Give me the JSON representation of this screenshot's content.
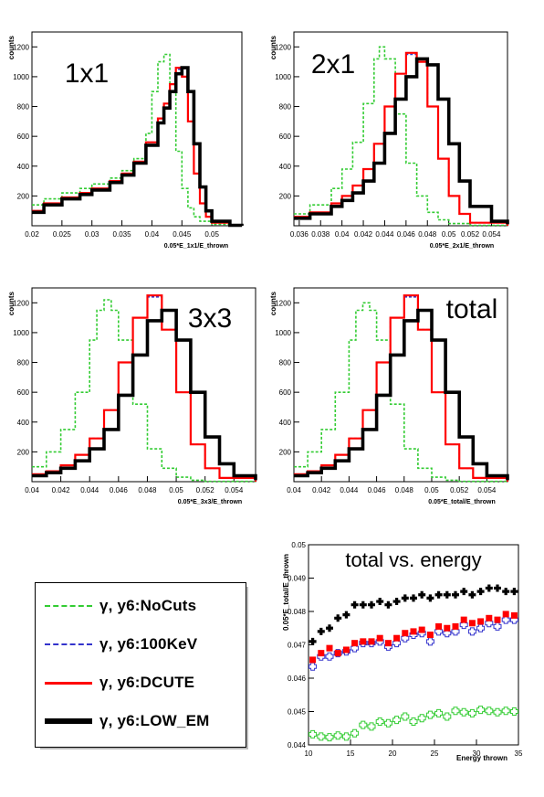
{
  "chart_data": [
    {
      "type": "line",
      "title": "1x1",
      "xlabel": "0.05*E_1x1/E_thrown",
      "ylabel": "counts",
      "xlim": [
        0.02,
        0.055
      ],
      "ylim": [
        0,
        1300
      ],
      "xticks": [
        "0.02",
        "0.025",
        "0.03",
        "0.035",
        "0.04",
        "0.045",
        "0.05"
      ],
      "yticks": [
        "200",
        "400",
        "600",
        "800",
        "1000",
        "1200"
      ],
      "series": [
        {
          "name": "γ, y6:NoCuts",
          "x": [
            0.02,
            0.022,
            0.025,
            0.028,
            0.03,
            0.033,
            0.035,
            0.037,
            0.039,
            0.04,
            0.041,
            0.042,
            0.043,
            0.044,
            0.045,
            0.046,
            0.047,
            0.048,
            0.05,
            0.053,
            0.055
          ],
          "values": [
            140,
            180,
            220,
            250,
            280,
            320,
            370,
            450,
            620,
            900,
            1100,
            1150,
            900,
            500,
            250,
            120,
            60,
            30,
            10,
            2,
            0
          ]
        },
        {
          "name": "γ, y6:100KeV",
          "x": [
            0.02,
            0.022,
            0.025,
            0.028,
            0.03,
            0.033,
            0.035,
            0.037,
            0.039,
            0.041,
            0.042,
            0.043,
            0.044,
            0.045,
            0.046,
            0.047,
            0.048,
            0.049,
            0.05,
            0.053,
            0.055
          ],
          "values": [
            100,
            150,
            190,
            220,
            250,
            300,
            350,
            430,
            560,
            720,
            820,
            950,
            1050,
            1000,
            700,
            350,
            150,
            60,
            20,
            2,
            0
          ]
        },
        {
          "name": "γ, y6:DCUTE",
          "x": [
            0.02,
            0.022,
            0.025,
            0.028,
            0.03,
            0.033,
            0.035,
            0.037,
            0.039,
            0.041,
            0.042,
            0.043,
            0.044,
            0.045,
            0.046,
            0.047,
            0.048,
            0.049,
            0.05,
            0.053,
            0.055
          ],
          "values": [
            100,
            150,
            190,
            220,
            250,
            300,
            350,
            430,
            560,
            720,
            820,
            950,
            1060,
            1000,
            700,
            350,
            150,
            60,
            20,
            2,
            0
          ]
        },
        {
          "name": "γ, y6:LOW_EM",
          "x": [
            0.02,
            0.022,
            0.025,
            0.028,
            0.03,
            0.033,
            0.035,
            0.037,
            0.039,
            0.041,
            0.042,
            0.043,
            0.044,
            0.045,
            0.046,
            0.047,
            0.048,
            0.049,
            0.05,
            0.053,
            0.055
          ],
          "values": [
            90,
            140,
            180,
            210,
            240,
            290,
            340,
            420,
            540,
            690,
            790,
            900,
            1020,
            1060,
            900,
            550,
            260,
            100,
            30,
            3,
            0
          ]
        }
      ]
    },
    {
      "type": "line",
      "title": "2x1",
      "xlabel": "0.05*E_2x1/E_thrown",
      "ylabel": "counts",
      "xlim": [
        0.0355,
        0.0555
      ],
      "ylim": [
        0,
        1300
      ],
      "xticks": [
        "0.036",
        "0.038",
        "0.04",
        "0.042",
        "0.044",
        "0.046",
        "0.048",
        "0.05",
        "0.052",
        "0.054"
      ],
      "yticks": [
        "200",
        "400",
        "600",
        "800",
        "1000",
        "1200"
      ],
      "series": [
        {
          "name": "γ, y6:NoCuts",
          "x": [
            0.0355,
            0.037,
            0.039,
            0.04,
            0.041,
            0.042,
            0.043,
            0.0435,
            0.044,
            0.045,
            0.046,
            0.047,
            0.048,
            0.049,
            0.05,
            0.052,
            0.0555
          ],
          "values": [
            80,
            140,
            250,
            380,
            560,
            820,
            1120,
            1200,
            1120,
            750,
            420,
            200,
            90,
            40,
            15,
            3,
            0
          ]
        },
        {
          "name": "γ, y6:100KeV",
          "x": [
            0.0355,
            0.037,
            0.039,
            0.04,
            0.041,
            0.042,
            0.043,
            0.044,
            0.045,
            0.046,
            0.047,
            0.048,
            0.049,
            0.05,
            0.051,
            0.052,
            0.0555
          ],
          "values": [
            60,
            90,
            150,
            200,
            270,
            380,
            550,
            800,
            1020,
            1150,
            1100,
            800,
            450,
            200,
            80,
            20,
            0
          ]
        },
        {
          "name": "γ, y6:DCUTE",
          "x": [
            0.0355,
            0.037,
            0.039,
            0.04,
            0.041,
            0.042,
            0.043,
            0.044,
            0.045,
            0.046,
            0.047,
            0.048,
            0.049,
            0.05,
            0.051,
            0.052,
            0.0555
          ],
          "values": [
            60,
            90,
            150,
            200,
            270,
            380,
            550,
            800,
            1020,
            1160,
            1100,
            800,
            450,
            200,
            80,
            20,
            0
          ]
        },
        {
          "name": "γ, y6:LOW_EM",
          "x": [
            0.0355,
            0.037,
            0.039,
            0.04,
            0.041,
            0.042,
            0.043,
            0.044,
            0.045,
            0.046,
            0.047,
            0.048,
            0.049,
            0.05,
            0.051,
            0.052,
            0.054,
            0.0555
          ],
          "values": [
            50,
            80,
            130,
            170,
            220,
            300,
            420,
            620,
            850,
            1000,
            1120,
            1080,
            850,
            550,
            300,
            130,
            30,
            10
          ]
        }
      ]
    },
    {
      "type": "line",
      "title": "3x3",
      "xlabel": "0.05*E_3x3/E_thrown",
      "ylabel": "counts",
      "xlim": [
        0.04,
        0.0555
      ],
      "ylim": [
        0,
        1300
      ],
      "xticks": [
        "0.04",
        "0.042",
        "0.044",
        "0.046",
        "0.048",
        "0.05",
        "0.052",
        "0.054"
      ],
      "yticks": [
        "200",
        "400",
        "600",
        "800",
        "1000",
        "1200"
      ],
      "series": [
        {
          "name": "γ, y6:NoCuts",
          "x": [
            0.04,
            0.041,
            0.042,
            0.043,
            0.044,
            0.0445,
            0.045,
            0.0455,
            0.046,
            0.047,
            0.048,
            0.049,
            0.05,
            0.051,
            0.052,
            0.0555
          ],
          "values": [
            100,
            200,
            350,
            600,
            950,
            1150,
            1220,
            1150,
            950,
            520,
            220,
            90,
            30,
            10,
            2,
            0
          ]
        },
        {
          "name": "γ, y6:100KeV",
          "x": [
            0.04,
            0.041,
            0.042,
            0.043,
            0.044,
            0.045,
            0.046,
            0.047,
            0.048,
            0.049,
            0.05,
            0.051,
            0.052,
            0.053,
            0.0555
          ],
          "values": [
            50,
            70,
            110,
            180,
            290,
            480,
            800,
            1100,
            1240,
            1020,
            600,
            250,
            90,
            25,
            0
          ]
        },
        {
          "name": "γ, y6:DCUTE",
          "x": [
            0.04,
            0.041,
            0.042,
            0.043,
            0.044,
            0.045,
            0.046,
            0.047,
            0.048,
            0.049,
            0.05,
            0.051,
            0.052,
            0.053,
            0.0555
          ],
          "values": [
            50,
            70,
            110,
            180,
            290,
            480,
            800,
            1100,
            1250,
            1020,
            600,
            250,
            90,
            25,
            0
          ]
        },
        {
          "name": "γ, y6:LOW_EM",
          "x": [
            0.04,
            0.041,
            0.042,
            0.043,
            0.044,
            0.045,
            0.046,
            0.047,
            0.048,
            0.049,
            0.05,
            0.051,
            0.052,
            0.053,
            0.054,
            0.0555
          ],
          "values": [
            40,
            60,
            90,
            140,
            220,
            350,
            580,
            850,
            1080,
            1150,
            950,
            600,
            300,
            120,
            40,
            10
          ]
        }
      ]
    },
    {
      "type": "line",
      "title": "total",
      "xlabel": "0.05*E_total/E_thrown",
      "ylabel": "counts",
      "xlim": [
        0.04,
        0.0555
      ],
      "ylim": [
        0,
        1300
      ],
      "xticks": [
        "0.04",
        "0.042",
        "0.044",
        "0.046",
        "0.048",
        "0.05",
        "0.052",
        "0.054"
      ],
      "yticks": [
        "200",
        "400",
        "600",
        "800",
        "1000",
        "1200"
      ],
      "series": [
        {
          "name": "γ, y6:NoCuts",
          "x": [
            0.04,
            0.041,
            0.042,
            0.043,
            0.044,
            0.0445,
            0.045,
            0.0455,
            0.046,
            0.047,
            0.048,
            0.049,
            0.05,
            0.051,
            0.052,
            0.0555
          ],
          "values": [
            100,
            200,
            350,
            600,
            950,
            1150,
            1200,
            1150,
            950,
            520,
            220,
            90,
            30,
            10,
            2,
            0
          ]
        },
        {
          "name": "γ, y6:100KeV",
          "x": [
            0.04,
            0.041,
            0.042,
            0.043,
            0.044,
            0.045,
            0.046,
            0.047,
            0.048,
            0.049,
            0.05,
            0.051,
            0.052,
            0.053,
            0.0555
          ],
          "values": [
            50,
            70,
            110,
            180,
            290,
            480,
            800,
            1100,
            1240,
            1020,
            600,
            250,
            90,
            25,
            0
          ]
        },
        {
          "name": "γ, y6:DCUTE",
          "x": [
            0.04,
            0.041,
            0.042,
            0.043,
            0.044,
            0.045,
            0.046,
            0.047,
            0.048,
            0.049,
            0.05,
            0.051,
            0.052,
            0.053,
            0.0555
          ],
          "values": [
            50,
            70,
            110,
            180,
            290,
            480,
            800,
            1100,
            1250,
            1020,
            600,
            250,
            90,
            25,
            0
          ]
        },
        {
          "name": "γ, y6:LOW_EM",
          "x": [
            0.04,
            0.041,
            0.042,
            0.043,
            0.044,
            0.045,
            0.046,
            0.047,
            0.048,
            0.049,
            0.05,
            0.051,
            0.052,
            0.053,
            0.054,
            0.0555
          ],
          "values": [
            40,
            60,
            90,
            140,
            220,
            350,
            580,
            850,
            1080,
            1150,
            950,
            600,
            300,
            120,
            40,
            10
          ]
        }
      ]
    },
    {
      "type": "scatter",
      "title": "total vs. energy",
      "xlabel": "Energy thrown",
      "ylabel": "0.05*E_total/E_thrown",
      "xlim": [
        10,
        35
      ],
      "ylim": [
        0.044,
        0.05
      ],
      "xticks": [
        "10",
        "15",
        "20",
        "25",
        "30",
        "35"
      ],
      "yticks": [
        "0.044",
        "0.045",
        "0.046",
        "0.047",
        "0.048",
        "0.049",
        "0.05"
      ],
      "x": [
        10.5,
        11.5,
        12.5,
        13.5,
        14.5,
        15.5,
        16.5,
        17.5,
        18.5,
        19.5,
        20.5,
        21.5,
        22.5,
        23.5,
        24.5,
        25.5,
        26.5,
        27.5,
        28.5,
        29.5,
        30.5,
        31.5,
        32.5,
        33.5,
        34.5
      ],
      "series": [
        {
          "name": "γ, y6:NoCuts",
          "values": [
            0.04432,
            0.04425,
            0.04423,
            0.04428,
            0.04425,
            0.04435,
            0.0446,
            0.04455,
            0.0447,
            0.04465,
            0.04475,
            0.04485,
            0.0447,
            0.0448,
            0.0449,
            0.04495,
            0.04485,
            0.04502,
            0.04498,
            0.04495,
            0.04505,
            0.04502,
            0.04498,
            0.04502,
            0.045
          ]
        },
        {
          "name": "γ, y6:100KeV",
          "values": [
            0.04635,
            0.04665,
            0.04665,
            0.04675,
            0.0468,
            0.0469,
            0.04705,
            0.04705,
            0.0471,
            0.04695,
            0.04705,
            0.0472,
            0.0473,
            0.04735,
            0.0471,
            0.0474,
            0.04735,
            0.0474,
            0.0476,
            0.0474,
            0.0475,
            0.04765,
            0.04755,
            0.04775,
            0.04775
          ]
        },
        {
          "name": "γ, y6:DCUTE",
          "values": [
            0.04655,
            0.04675,
            0.0469,
            0.04675,
            0.04685,
            0.04705,
            0.0471,
            0.0471,
            0.0472,
            0.04705,
            0.0472,
            0.04735,
            0.0474,
            0.04745,
            0.0473,
            0.04755,
            0.0475,
            0.04755,
            0.04775,
            0.04765,
            0.0477,
            0.0478,
            0.04775,
            0.04792,
            0.04788
          ]
        },
        {
          "name": "γ, y6:LOW_EM",
          "values": [
            0.0471,
            0.0474,
            0.0475,
            0.0478,
            0.0479,
            0.0482,
            0.0482,
            0.0482,
            0.0483,
            0.0482,
            0.0483,
            0.0484,
            0.0484,
            0.0485,
            0.0484,
            0.0485,
            0.0485,
            0.0485,
            0.0486,
            0.0485,
            0.0486,
            0.0487,
            0.0487,
            0.0486,
            0.0486
          ]
        }
      ]
    }
  ],
  "legend": {
    "entries": [
      {
        "label": "γ, y6:NoCuts",
        "color": "#33cc33",
        "style": "dashed"
      },
      {
        "label": "γ, y6:100KeV",
        "color": "#3333cc",
        "style": "dashed"
      },
      {
        "label": "γ, y6:DCUTE",
        "color": "#ff0000",
        "style": "solid"
      },
      {
        "label": "γ, y6:LOW_EM",
        "color": "#000000",
        "style": "solid"
      }
    ]
  },
  "colors": {
    "NoCuts": "#33cc33",
    "100KeV": "#3333cc",
    "DCUTE": "#ff0000",
    "LOW_EM": "#000000"
  }
}
